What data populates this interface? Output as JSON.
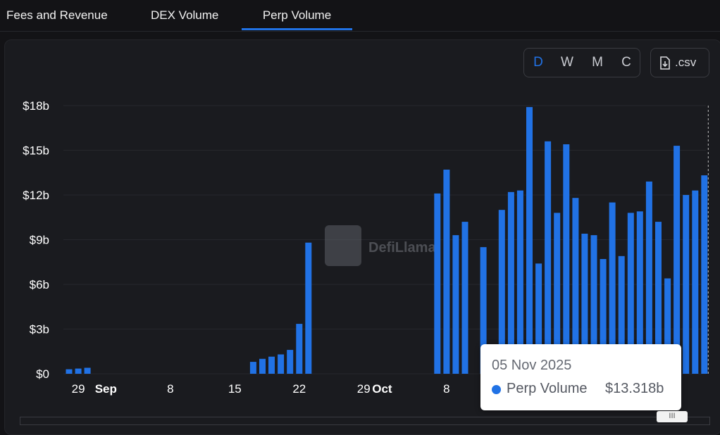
{
  "tabs": [
    {
      "label": "Fees and Revenue",
      "active": false
    },
    {
      "label": "DEX Volume",
      "active": false
    },
    {
      "label": "Perp Volume",
      "active": true
    }
  ],
  "granularity": {
    "options": [
      "D",
      "W",
      "M",
      "C"
    ],
    "selected": "D"
  },
  "csv_button": {
    "label": ".csv",
    "icon": "file-download-icon"
  },
  "watermark": {
    "text": "DefiLlama",
    "icon": "llama-logo-icon"
  },
  "tooltip": {
    "date": "05 Nov 2025",
    "series": "Perp Volume",
    "value": "$13.318b"
  },
  "slider": {
    "grip": "III"
  },
  "colors": {
    "bar": "#2172e5",
    "background": "#1a1b1f",
    "accent": "#2172e5"
  },
  "chart_data": {
    "type": "bar",
    "title": "Perp Volume",
    "xlabel": "",
    "ylabel": "",
    "ylim": [
      0,
      18
    ],
    "y_unit": "b",
    "y_ticks": [
      0,
      3,
      6,
      9,
      12,
      15,
      18
    ],
    "y_tick_labels": [
      "$0",
      "$3b",
      "$6b",
      "$9b",
      "$12b",
      "$15b",
      "$18b"
    ],
    "x_start_day": 0,
    "x_ticks": [
      {
        "day": 1,
        "label": "29",
        "bold": false
      },
      {
        "day": 4,
        "label": "Sep",
        "bold": true
      },
      {
        "day": 11,
        "label": "8",
        "bold": false
      },
      {
        "day": 18,
        "label": "15",
        "bold": false
      },
      {
        "day": 25,
        "label": "22",
        "bold": false
      },
      {
        "day": 32,
        "label": "29",
        "bold": false
      },
      {
        "day": 34,
        "label": "Oct",
        "bold": true
      },
      {
        "day": 41,
        "label": "8",
        "bold": false
      }
    ],
    "series": [
      {
        "name": "Perp Volume",
        "values": [
          0.3,
          0.35,
          0.4,
          0,
          0,
          0,
          0,
          0,
          0,
          0,
          0,
          0,
          0,
          0,
          0,
          0,
          0,
          0,
          0,
          0,
          0.8,
          1.0,
          1.15,
          1.3,
          1.6,
          3.35,
          8.8,
          0,
          0,
          0,
          0,
          0,
          0,
          0,
          0,
          0,
          0,
          0,
          0,
          0,
          12.1,
          13.7,
          9.3,
          10.2,
          0,
          8.5,
          0,
          11.0,
          12.2,
          12.3,
          17.9,
          7.4,
          15.6,
          10.8,
          15.4,
          11.8,
          9.4,
          9.3,
          7.7,
          11.5,
          7.9,
          10.8,
          10.9,
          12.9,
          10.2,
          6.4,
          15.3,
          12.0,
          12.3,
          13.318
        ]
      }
    ],
    "highlight_index": 69
  }
}
